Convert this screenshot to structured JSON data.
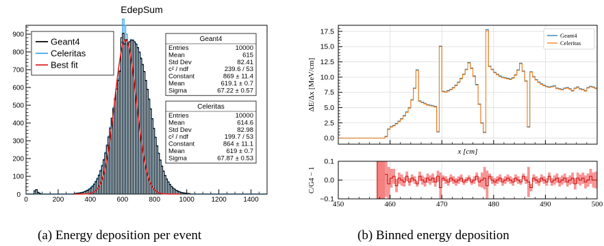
{
  "captions": {
    "a": "(a) Energy deposition per event",
    "b": "(b) Binned energy deposition"
  },
  "colors": {
    "geant4_hist": "#000000",
    "celeritas_hist": "#42a5e6",
    "fit": "#e02020",
    "plot_b_geant4": "#1f77b4",
    "plot_b_celeritas": "#ff7f0e",
    "ratio_line": "#cc0000",
    "ratio_band": "#f26a6a"
  },
  "chart_data": [
    {
      "type": "bar",
      "title": "EdepSum",
      "xlabel": "",
      "ylabel": "",
      "xlim": [
        0,
        1500
      ],
      "ylim": [
        0,
        950
      ],
      "x_ticks": [
        "0",
        "200",
        "400",
        "600",
        "800",
        "1000",
        "1200",
        "1400"
      ],
      "y_ticks": [
        "100",
        "200",
        "300",
        "400",
        "500",
        "600",
        "700",
        "800",
        "900"
      ],
      "y_zero_label": "0",
      "legend_position": "top-left",
      "legend": [
        "Geant4",
        "Celeritas",
        "Best fit"
      ],
      "bin_width": 10,
      "bin_start": 300,
      "series": [
        {
          "name": "Geant4",
          "values": [
            3,
            4,
            5,
            6,
            8,
            10,
            13,
            17,
            21,
            27,
            34,
            43,
            55,
            69,
            85,
            105,
            130,
            158,
            192,
            230,
            272,
            320,
            370,
            425,
            480,
            535,
            590,
            640,
            690,
            730,
            765,
            800,
            825,
            845,
            857,
            866,
            866,
            857,
            845,
            825,
            800,
            765,
            730,
            690,
            640,
            590,
            535,
            480,
            425,
            370,
            320,
            272,
            230,
            192,
            158,
            130,
            105,
            85,
            69,
            55,
            43,
            34,
            27,
            21,
            17,
            13,
            10,
            8,
            6,
            5,
            4,
            3
          ]
        },
        {
          "name": "Celeritas",
          "values": [
            4,
            5,
            6,
            7,
            9,
            11,
            15,
            19,
            24,
            30,
            38,
            47,
            58,
            73,
            90,
            110,
            135,
            163,
            196,
            235,
            278,
            326,
            376,
            430,
            486,
            540,
            595,
            648,
            698,
            735,
            770,
            806,
            828,
            848,
            860,
            870,
            866,
            855,
            842,
            822,
            797,
            762,
            728,
            688,
            638,
            588,
            532,
            478,
            422,
            368,
            318,
            270,
            228,
            190,
            156,
            128,
            103,
            83,
            67,
            53,
            42,
            33,
            26,
            20,
            16,
            12,
            9,
            7,
            6,
            4,
            3,
            2
          ]
        },
        {
          "name": "Best fit",
          "values": [
            3,
            4,
            5,
            6,
            8,
            10,
            13,
            17,
            21,
            27,
            34,
            43,
            55,
            69,
            85,
            105,
            130,
            158,
            192,
            230,
            272,
            320,
            370,
            425,
            480,
            535,
            590,
            640,
            690,
            730,
            765,
            800,
            825,
            845,
            857,
            866,
            866,
            857,
            845,
            825,
            800,
            765,
            730,
            690,
            640,
            590,
            535,
            480,
            425,
            370,
            320,
            272,
            230,
            192,
            158,
            130,
            105,
            85,
            69,
            55,
            43,
            34,
            27,
            21,
            17,
            13,
            10,
            8,
            6,
            5,
            4,
            3
          ]
        }
      ],
      "fit_params": {
        "constant": 869,
        "mean": 619.1,
        "sigma": 67.22
      },
      "low_bins": {
        "x": [
          50,
          60,
          70,
          80
        ],
        "values": [
          18,
          25,
          10,
          4
        ]
      },
      "spikes": {
        "x": [
          590,
          600,
          610,
          620
        ],
        "geant4": [
          880,
          905,
          845,
          870
        ],
        "celeritas": [
          855,
          985,
          950,
          900
        ]
      },
      "stats_boxes": [
        {
          "title": "Geant4",
          "rows": [
            {
              "label": "Entries",
              "value": "10000"
            },
            {
              "label": "Mean",
              "value": "615"
            },
            {
              "label": "Std Dev",
              "value": "82.41"
            },
            {
              "label": "c² / ndf",
              "value": "239.6 / 53"
            },
            {
              "label": "Constant",
              "value": "869 ± 11.4"
            },
            {
              "label": "Mean",
              "value": "619.1 ± 0.7"
            },
            {
              "label": "Sigma",
              "value": "67.22 ± 0.57"
            }
          ]
        },
        {
          "title": "Celeritas",
          "rows": [
            {
              "label": "Entries",
              "value": "10000"
            },
            {
              "label": "Mean",
              "value": "614.6"
            },
            {
              "label": "Std Dev",
              "value": "82.98"
            },
            {
              "label": "c² / ndf",
              "value": "199.7 / 53"
            },
            {
              "label": "Constant",
              "value": "864 ± 11.1"
            },
            {
              "label": "Mean",
              "value": "619 ± 0.7"
            },
            {
              "label": "Sigma",
              "value": "67.87 ± 0.53"
            }
          ]
        }
      ]
    },
    {
      "type": "line",
      "title": "",
      "xlabel": "x [cm]",
      "ylabel": "ΔE/Δx [MeV/cm]",
      "xlim": [
        450,
        500
      ],
      "ylim": [
        -1,
        18.5
      ],
      "y_ticks": [
        "0.0",
        "2.5",
        "5.0",
        "7.5",
        "10.0",
        "12.5",
        "15.0",
        "17.5"
      ],
      "grid": true,
      "legend_position": "top-right",
      "legend": [
        "Geant4",
        "Celeritas"
      ],
      "x": [
        458.5,
        459,
        459.5,
        460,
        460.5,
        461,
        461.5,
        462,
        462.5,
        463,
        463.5,
        464,
        464.5,
        465,
        465.5,
        466,
        466.5,
        467,
        467.5,
        468,
        468.5,
        469,
        469.5,
        470,
        470.5,
        471,
        471.5,
        472,
        472.5,
        473,
        473.5,
        474,
        474.5,
        475,
        475.5,
        476,
        476.5,
        477,
        477.5,
        478,
        478.5,
        479,
        479.5,
        480,
        480.5,
        481,
        481.5,
        482,
        482.5,
        483,
        483.5,
        484,
        484.5,
        485,
        485.5,
        486,
        486.5,
        487,
        487.5,
        488,
        488.5,
        489,
        489.5,
        490,
        490.5,
        491,
        491.5,
        492,
        492.5,
        493,
        493.5,
        494,
        494.5,
        495,
        495.5,
        496,
        496.5,
        497,
        497.5,
        498,
        498.5,
        499,
        499.5,
        500
      ],
      "series": [
        {
          "name": "Geant4",
          "values": [
            0,
            0.3,
            1.5,
            1.9,
            2.1,
            2.4,
            2.8,
            3.2,
            3.7,
            4.3,
            5.0,
            6.3,
            8.2,
            11.2,
            6.1,
            5.9,
            5.7,
            5.5,
            5.4,
            5.3,
            5.2,
            1.0,
            15.1,
            7.7,
            7.6,
            7.8,
            8.0,
            8.3,
            8.7,
            9.2,
            9.8,
            10.5,
            11.3,
            12.4,
            11.5,
            10.2,
            8.8,
            5.6,
            2.5,
            0.9,
            17.8,
            11.8,
            11.3,
            10.8,
            10.5,
            10.2,
            10.0,
            9.9,
            9.8,
            9.7,
            9.9,
            10.4,
            11.2,
            12.3,
            11.0,
            9.4,
            1.8,
            10.9,
            10.1,
            9.6,
            9.2,
            8.9,
            8.7,
            8.5,
            8.4,
            8.5,
            8.6,
            8.2,
            8.1,
            8.0,
            8.2,
            8.3,
            8.1,
            7.8,
            8.2,
            8.4,
            8.1,
            8.0,
            7.8,
            8.3,
            8.5,
            8.4,
            8.2,
            8.1
          ]
        },
        {
          "name": "Celeritas",
          "values": [
            0,
            0.2,
            1.4,
            1.8,
            2.0,
            2.3,
            2.7,
            3.1,
            3.6,
            4.2,
            4.9,
            6.2,
            8.1,
            11.1,
            6.0,
            5.8,
            5.6,
            5.4,
            5.3,
            5.2,
            5.1,
            1.1,
            15.0,
            7.6,
            7.5,
            7.7,
            7.9,
            8.2,
            8.6,
            9.1,
            9.7,
            10.4,
            11.2,
            12.3,
            11.4,
            10.1,
            8.7,
            5.5,
            2.4,
            1.0,
            17.6,
            11.7,
            11.2,
            10.7,
            10.4,
            10.1,
            9.9,
            9.8,
            9.7,
            9.6,
            9.8,
            10.3,
            11.1,
            12.2,
            10.9,
            9.3,
            1.9,
            10.8,
            10.0,
            9.5,
            9.1,
            8.8,
            8.6,
            8.4,
            8.3,
            8.4,
            8.5,
            8.1,
            8.0,
            7.9,
            8.1,
            8.2,
            8.0,
            7.7,
            8.1,
            8.3,
            8.0,
            7.9,
            7.7,
            8.2,
            8.4,
            8.3,
            8.1,
            8.0
          ]
        }
      ]
    },
    {
      "type": "line",
      "title": "",
      "xlabel": "",
      "ylabel": "C/G4 − 1",
      "xlim": [
        450,
        500
      ],
      "ylim": [
        -0.1,
        0.1
      ],
      "x_ticks": [
        "450",
        "460",
        "470",
        "480",
        "490",
        "500"
      ],
      "y_ticks": [
        "−0.1",
        "0.0",
        "0.1"
      ],
      "grid": true,
      "band_start_x": 457.5,
      "full_band_until_x": 459,
      "ratio": {
        "x": [
          459,
          459.5,
          460,
          460.5,
          461,
          461.5,
          462,
          462.5,
          463,
          463.5,
          464,
          464.5,
          465,
          465.5,
          466,
          466.5,
          467,
          467.5,
          468,
          468.5,
          469,
          469.5,
          470,
          470.5,
          471,
          471.5,
          472,
          472.5,
          473,
          473.5,
          474,
          474.5,
          475,
          475.5,
          476,
          476.5,
          477,
          477.5,
          478,
          478.5,
          479,
          479.5,
          480,
          480.5,
          481,
          481.5,
          482,
          482.5,
          483,
          483.5,
          484,
          484.5,
          485,
          485.5,
          486,
          486.5,
          487,
          487.5,
          488,
          488.5,
          489,
          489.5,
          490,
          490.5,
          491,
          491.5,
          492,
          492.5,
          493,
          493.5,
          494,
          494.5,
          495,
          495.5,
          496,
          496.5,
          497,
          497.5,
          498,
          498.5,
          499,
          499.5,
          500
        ],
        "values": [
          0.03,
          -0.02,
          0.01,
          0.02,
          -0.03,
          0.01,
          0.0,
          -0.01,
          0.02,
          -0.01,
          0.01,
          0.0,
          -0.02,
          0.02,
          0.0,
          -0.01,
          0.01,
          0.0,
          0.01,
          -0.01,
          0.02,
          -0.04,
          0.01,
          0.0,
          -0.01,
          0.01,
          0.0,
          -0.01,
          0.0,
          0.01,
          -0.01,
          0.0,
          0.01,
          -0.01,
          0.0,
          0.02,
          -0.01,
          0.0,
          0.01,
          -0.03,
          0.02,
          0.0,
          -0.01,
          0.0,
          0.01,
          -0.01,
          0.0,
          0.01,
          0.0,
          -0.01,
          0.01,
          0.0,
          -0.01,
          0.02,
          0.0,
          -0.01,
          -0.04,
          0.01,
          0.0,
          -0.01,
          0.01,
          0.0,
          -0.01,
          0.02,
          -0.01,
          0.0,
          0.01,
          -0.01,
          0.0,
          0.01,
          -0.01,
          0.0,
          0.01,
          -0.02,
          0.01,
          0.0,
          0.01,
          -0.01,
          0.0,
          0.02,
          0.0,
          0.0,
          -0.01
        ],
        "errors": [
          0.12,
          0.09,
          0.05,
          0.04,
          0.035,
          0.03,
          0.03,
          0.025,
          0.025,
          0.02,
          0.02,
          0.02,
          0.015,
          0.025,
          0.025,
          0.025,
          0.025,
          0.025,
          0.025,
          0.025,
          0.03,
          0.08,
          0.015,
          0.02,
          0.02,
          0.02,
          0.02,
          0.02,
          0.02,
          0.02,
          0.015,
          0.015,
          0.015,
          0.015,
          0.02,
          0.02,
          0.025,
          0.04,
          0.06,
          0.08,
          0.015,
          0.02,
          0.02,
          0.02,
          0.02,
          0.02,
          0.02,
          0.02,
          0.02,
          0.02,
          0.02,
          0.02,
          0.015,
          0.015,
          0.02,
          0.08,
          0.02,
          0.02,
          0.02,
          0.02,
          0.02,
          0.02,
          0.02,
          0.02,
          0.02,
          0.025,
          0.025,
          0.025,
          0.025,
          0.025,
          0.025,
          0.025,
          0.03,
          0.03,
          0.03,
          0.03,
          0.03,
          0.035,
          0.035,
          0.04,
          0.04,
          0.045,
          0.05
        ]
      }
    }
  ]
}
